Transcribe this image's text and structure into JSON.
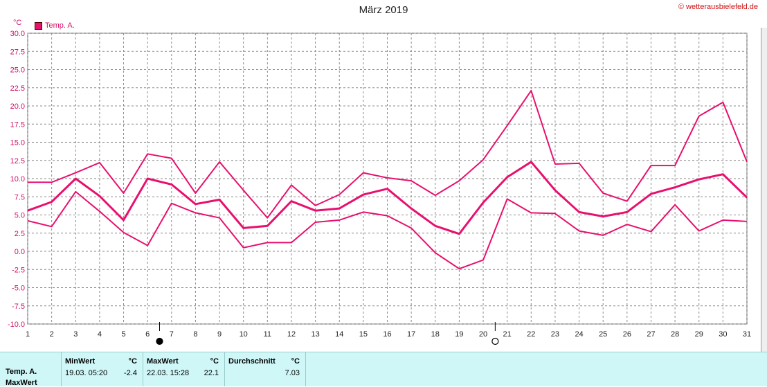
{
  "title": "März 2019",
  "credit": "© wetterausbielefeld.de",
  "unit": "°C",
  "legend": "Temp. A.",
  "chart_data": {
    "type": "line",
    "x": [
      1,
      2,
      3,
      4,
      5,
      6,
      7,
      8,
      9,
      10,
      11,
      12,
      13,
      14,
      15,
      16,
      17,
      18,
      19,
      20,
      21,
      22,
      23,
      24,
      25,
      26,
      27,
      28,
      29,
      30,
      31
    ],
    "ylim": [
      -10,
      30
    ],
    "yticks": [
      "30.0",
      "27.5",
      "25.0",
      "22.5",
      "20.0",
      "17.5",
      "15.0",
      "12.5",
      "10.0",
      "7.5",
      "5.0",
      "2.5",
      "0.0",
      "-2.5",
      "-5.0",
      "-7.5",
      "-10.0"
    ],
    "xticks": [
      "1",
      "2",
      "3",
      "4",
      "5",
      "6",
      "7",
      "8",
      "9",
      "10",
      "11",
      "12",
      "13",
      "14",
      "15",
      "16",
      "17",
      "18",
      "19",
      "20",
      "21",
      "22",
      "23",
      "24",
      "25",
      "26",
      "27",
      "28",
      "29",
      "30",
      "31"
    ],
    "grid": true,
    "color": "#e8106e",
    "series": [
      {
        "values": [
          9.5,
          9.5,
          10.8,
          12.2,
          8.0,
          13.4,
          12.8,
          8.0,
          12.3,
          8.4,
          4.6,
          9.1,
          6.3,
          7.8,
          10.8,
          10.1,
          9.7,
          7.7,
          9.7,
          12.6,
          17.3,
          22.1,
          12.0,
          12.1,
          8.0,
          6.9,
          11.8,
          11.8,
          18.6,
          20.5,
          12.3
        ]
      },
      {
        "values": [
          5.6,
          6.8,
          10.0,
          7.6,
          4.3,
          10.0,
          9.2,
          6.5,
          7.1,
          3.2,
          3.5,
          6.9,
          5.6,
          5.9,
          7.8,
          8.6,
          5.9,
          3.5,
          2.4,
          6.7,
          10.2,
          12.3,
          8.4,
          5.4,
          4.8,
          5.4,
          7.9,
          8.8,
          9.9,
          10.6,
          7.4
        ]
      },
      {
        "values": [
          4.2,
          3.4,
          8.2,
          5.5,
          2.6,
          0.8,
          6.6,
          5.3,
          4.6,
          0.5,
          1.2,
          1.2,
          4.0,
          4.3,
          5.4,
          4.9,
          3.2,
          -0.2,
          -2.4,
          -1.2,
          7.2,
          5.3,
          5.2,
          2.8,
          2.2,
          3.7,
          2.7,
          6.4,
          2.8,
          4.3,
          4.1
        ]
      }
    ],
    "moon_phases": [
      {
        "day": 7,
        "phase": "new"
      },
      {
        "day": 21,
        "phase": "full"
      }
    ]
  },
  "stats": {
    "row_label": "Temp. A.",
    "row_label2": "MaxWert",
    "min_header": "MinWert",
    "min_unit": "°C",
    "min_time": "19.03.  05:20",
    "min_value": "-2.4",
    "max_header": "MaxWert",
    "max_unit": "°C",
    "max_time": "22.03.  15:28",
    "max_value": "22.1",
    "avg_header": "Durchschnitt",
    "avg_unit": "°C",
    "avg_value": "7.03"
  }
}
